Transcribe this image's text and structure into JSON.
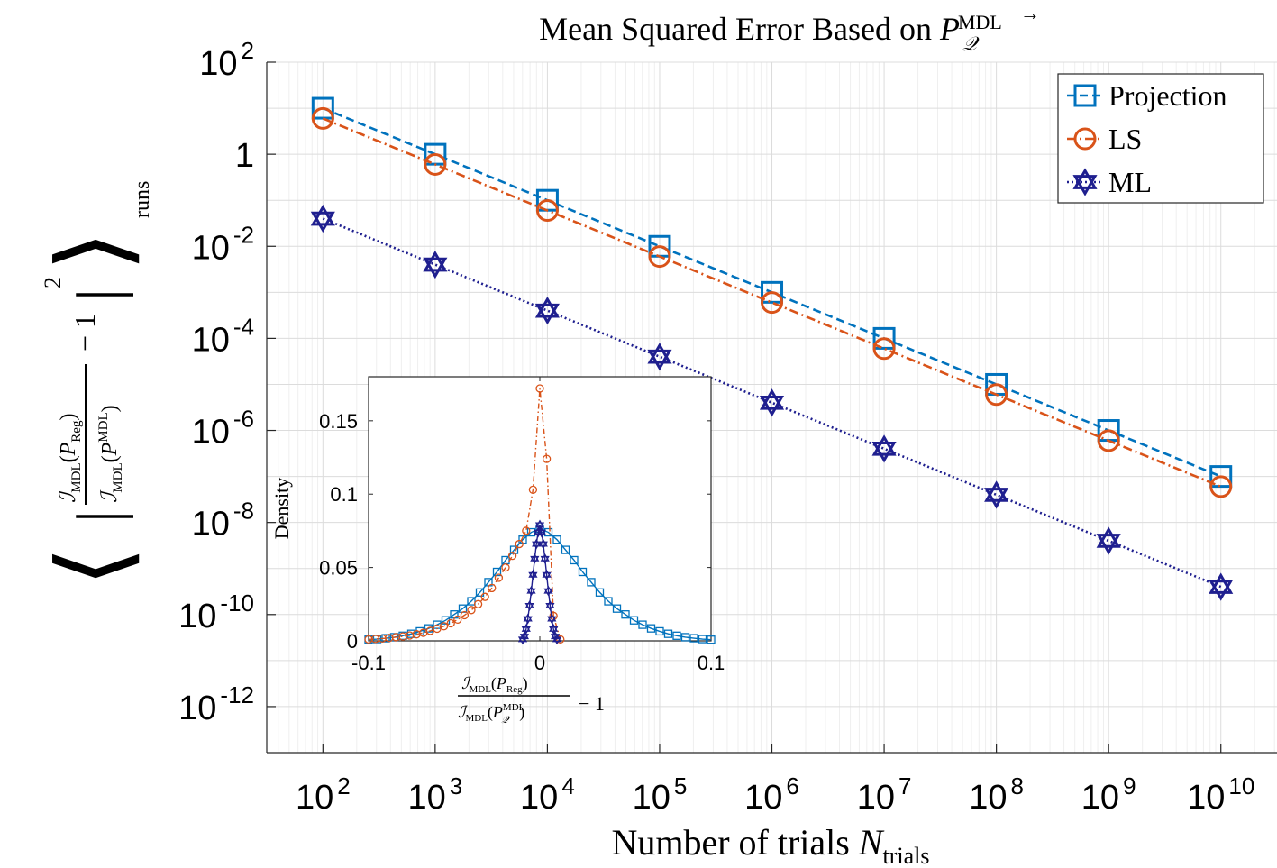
{
  "chart_data": [
    {
      "type": "line",
      "title": "Mean Squared Error Based on P⃗_𝒬^MDL",
      "xlabel": "Number of trials N_trials",
      "ylabel": "⟨ | ℐ_MDL(P⃗_Reg) / ℐ_MDL(P⃗_𝒬^MDL) − 1 |² ⟩_runs",
      "xscale": "log",
      "yscale": "log",
      "xlim": [
        31.6,
        31622776601
      ],
      "ylim": [
        1e-13,
        100
      ],
      "x_ticks": [
        {
          "value": 100,
          "mantissa": "10",
          "exponent": "2"
        },
        {
          "value": 1000,
          "mantissa": "10",
          "exponent": "3"
        },
        {
          "value": 10000,
          "mantissa": "10",
          "exponent": "4"
        },
        {
          "value": 100000,
          "mantissa": "10",
          "exponent": "5"
        },
        {
          "value": 1000000,
          "mantissa": "10",
          "exponent": "6"
        },
        {
          "value": 10000000,
          "mantissa": "10",
          "exponent": "7"
        },
        {
          "value": 100000000,
          "mantissa": "10",
          "exponent": "8"
        },
        {
          "value": 1000000000,
          "mantissa": "10",
          "exponent": "9"
        },
        {
          "value": 10000000000,
          "mantissa": "10",
          "exponent": "10"
        }
      ],
      "y_ticks": [
        {
          "value": 100,
          "mantissa": "10",
          "exponent": "2"
        },
        {
          "value": 1,
          "mantissa": "1",
          "exponent": ""
        },
        {
          "value": 0.01,
          "mantissa": "10",
          "exponent": "-2"
        },
        {
          "value": 0.0001,
          "mantissa": "10",
          "exponent": "-4"
        },
        {
          "value": 1e-06,
          "mantissa": "10",
          "exponent": "-6"
        },
        {
          "value": 1e-08,
          "mantissa": "10",
          "exponent": "-8"
        },
        {
          "value": 1e-10,
          "mantissa": "10",
          "exponent": "-10"
        },
        {
          "value": 1e-12,
          "mantissa": "10",
          "exponent": "-12"
        }
      ],
      "grid": true,
      "legend_position": "top-right",
      "x": [
        100,
        1000,
        10000,
        100000,
        1000000,
        10000000,
        100000000,
        1000000000,
        10000000000
      ],
      "series": [
        {
          "name": "Projection",
          "color": "#0072BD",
          "marker": "square",
          "line": "dashed",
          "values": [
            10,
            1,
            0.1,
            0.01,
            0.001,
            0.0001,
            1e-05,
            1e-06,
            1e-07
          ]
        },
        {
          "name": "LS",
          "color": "#D95319",
          "marker": "circle",
          "line": "dashdot",
          "values": [
            6,
            0.6,
            0.06,
            0.006,
            0.0006,
            6e-05,
            6e-06,
            6e-07,
            6e-08
          ]
        },
        {
          "name": "ML",
          "color": "#1F1F8F",
          "marker": "hexagram",
          "line": "dotted",
          "values": [
            0.04,
            0.004,
            0.0004,
            4e-05,
            4e-06,
            4e-07,
            4e-08,
            4e-09,
            4e-10
          ]
        }
      ]
    },
    {
      "type": "line",
      "title": "",
      "xlabel": "ℐ_MDL(P⃗_Reg) / ℐ_MDL(P⃗_𝒬^MDL) − 1",
      "ylabel": "Density",
      "xlim": [
        -0.1,
        0.1
      ],
      "ylim": [
        0,
        0.18
      ],
      "x_ticks": [
        -0.1,
        0,
        0.1
      ],
      "x_tick_labels": [
        "-0.1",
        "0",
        "0.1"
      ],
      "y_ticks": [
        0,
        0.05,
        0.1,
        0.15
      ],
      "y_tick_labels": [
        "0",
        "0.05",
        "0.1",
        "0.15"
      ],
      "grid": false,
      "series": [
        {
          "name": "Projection",
          "color": "#0072BD",
          "marker": "square",
          "line": "solid",
          "x": [
            -0.1,
            -0.095,
            -0.09,
            -0.085,
            -0.08,
            -0.075,
            -0.07,
            -0.065,
            -0.06,
            -0.055,
            -0.05,
            -0.045,
            -0.04,
            -0.035,
            -0.03,
            -0.025,
            -0.02,
            -0.015,
            -0.01,
            -0.005,
            0,
            0.005,
            0.01,
            0.015,
            0.02,
            0.025,
            0.03,
            0.035,
            0.04,
            0.045,
            0.05,
            0.055,
            0.06,
            0.065,
            0.07,
            0.075,
            0.08,
            0.085,
            0.09,
            0.095,
            0.1
          ],
          "values": [
            0.0008,
            0.0012,
            0.0018,
            0.0025,
            0.0035,
            0.0048,
            0.0065,
            0.0085,
            0.011,
            0.014,
            0.018,
            0.022,
            0.027,
            0.033,
            0.04,
            0.047,
            0.055,
            0.062,
            0.069,
            0.074,
            0.0765,
            0.074,
            0.069,
            0.062,
            0.055,
            0.047,
            0.04,
            0.033,
            0.027,
            0.022,
            0.018,
            0.014,
            0.011,
            0.0085,
            0.0065,
            0.0048,
            0.0035,
            0.0025,
            0.0018,
            0.0012,
            0.0008
          ]
        },
        {
          "name": "LS",
          "color": "#D95319",
          "marker": "circle",
          "line": "dashdot",
          "x": [
            -0.1,
            -0.096,
            -0.092,
            -0.088,
            -0.084,
            -0.08,
            -0.076,
            -0.072,
            -0.068,
            -0.064,
            -0.06,
            -0.056,
            -0.052,
            -0.048,
            -0.044,
            -0.04,
            -0.036,
            -0.032,
            -0.028,
            -0.024,
            -0.02,
            -0.016,
            -0.012,
            -0.008,
            -0.004,
            0,
            0.004,
            0.008,
            0.012
          ],
          "values": [
            0.001,
            0.0013,
            0.0016,
            0.002,
            0.0025,
            0.003,
            0.0037,
            0.0045,
            0.0055,
            0.0068,
            0.0083,
            0.01,
            0.012,
            0.0145,
            0.0175,
            0.021,
            0.025,
            0.03,
            0.036,
            0.043,
            0.05,
            0.058,
            0.066,
            0.075,
            0.103,
            0.172,
            0.124,
            0.017,
            0.001
          ]
        },
        {
          "name": "ML",
          "color": "#1F1F8F",
          "marker": "hexagram",
          "line": "solid",
          "x": [
            -0.01,
            -0.009,
            -0.008,
            -0.007,
            -0.006,
            -0.005,
            -0.004,
            -0.003,
            -0.002,
            -0.001,
            0,
            0.001,
            0.002,
            0.003,
            0.004,
            0.005,
            0.006,
            0.007,
            0.008,
            0.009,
            0.01
          ],
          "values": [
            0.001,
            0.003,
            0.008,
            0.015,
            0.024,
            0.034,
            0.045,
            0.056,
            0.066,
            0.074,
            0.079,
            0.074,
            0.066,
            0.056,
            0.045,
            0.034,
            0.024,
            0.015,
            0.008,
            0.003,
            0.001
          ]
        }
      ]
    }
  ]
}
